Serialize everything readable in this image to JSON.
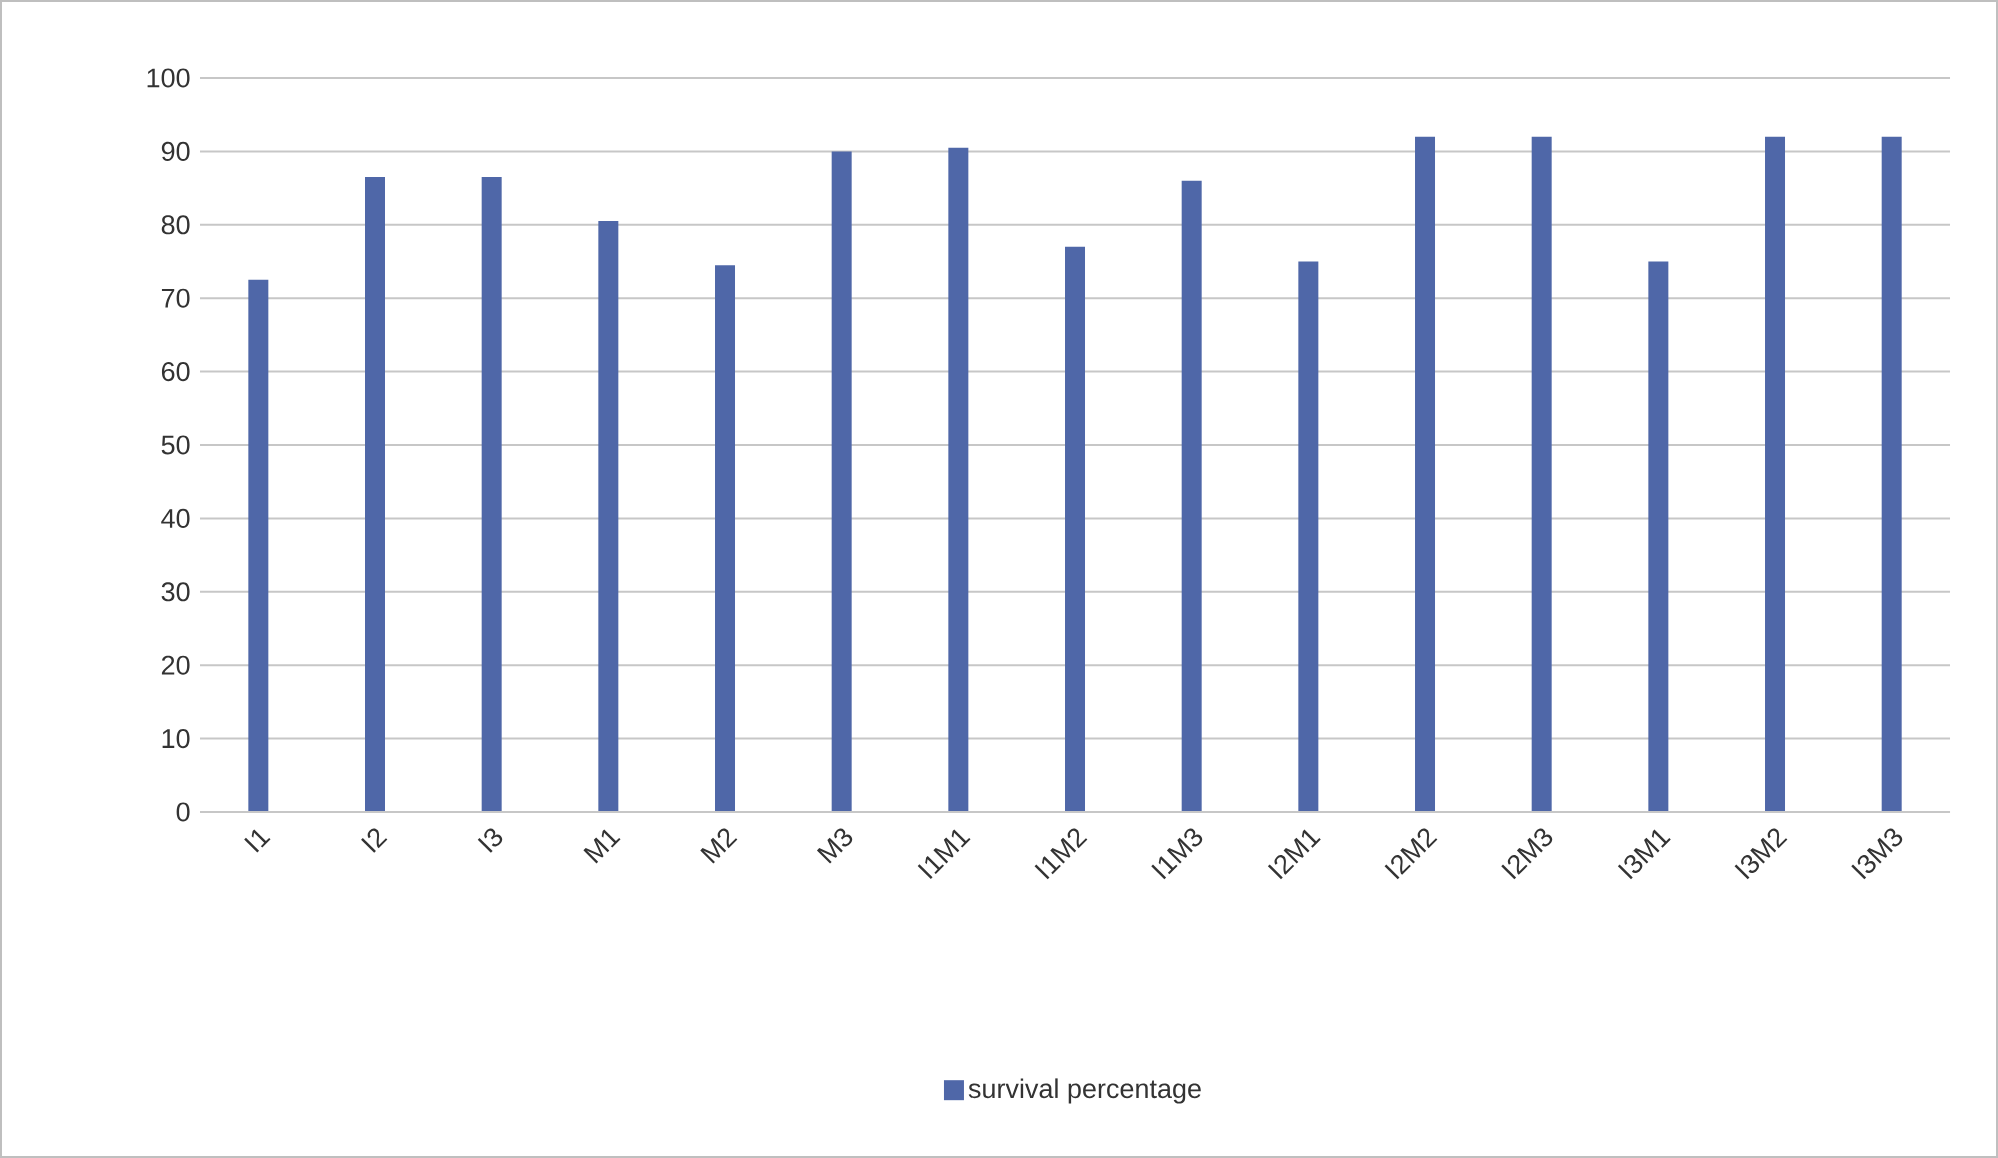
{
  "chart_data": {
    "type": "bar",
    "categories": [
      "I1",
      "I2",
      "I3",
      "M1",
      "M2",
      "M3",
      "I1M1",
      "I1M2",
      "I1M3",
      "I2M1",
      "I2M2",
      "I2M3",
      "I3M1",
      "I3M2",
      "I3M3"
    ],
    "series": [
      {
        "name": "survival percentage",
        "color": "#4f67a8",
        "values": [
          72.5,
          86.5,
          86.5,
          80.5,
          74.5,
          90,
          90.5,
          77,
          86,
          75,
          92,
          92,
          75,
          92,
          92
        ]
      }
    ],
    "ylim": [
      0,
      100
    ],
    "yticks": [
      0,
      10,
      20,
      30,
      40,
      50,
      60,
      70,
      80,
      90,
      100
    ],
    "grid": "y",
    "legend": "bottom"
  }
}
